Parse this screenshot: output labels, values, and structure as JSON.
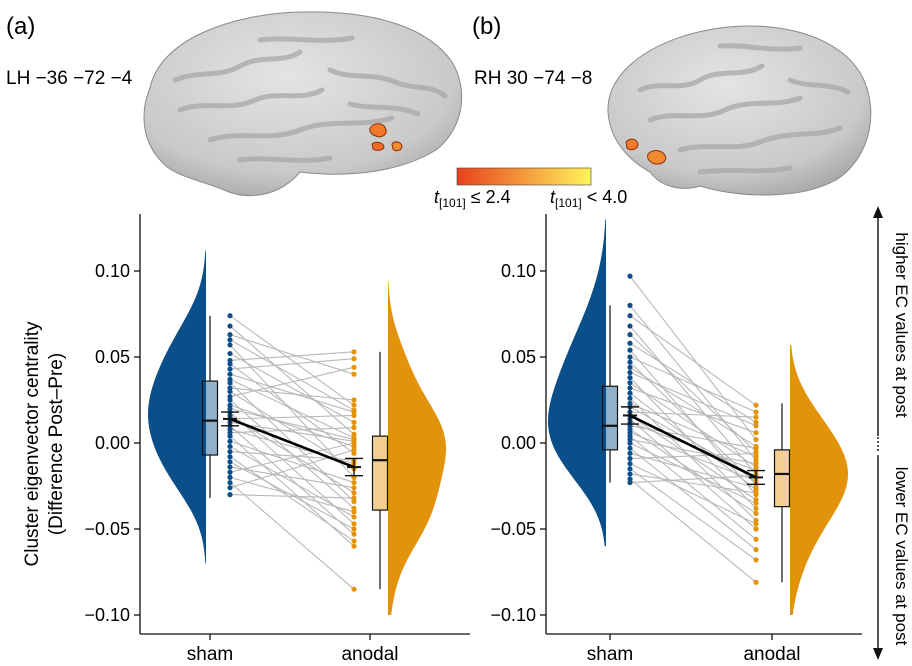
{
  "panels": [
    {
      "label": "(a)",
      "brain_label": "LH −36 −72 −4",
      "hemisphere": "left",
      "chart_data": {
        "type": "raincloud-paired",
        "categories": [
          "sham",
          "anodal"
        ],
        "ylim": [
          -0.11,
          0.13
        ],
        "yticks": [
          0.1,
          0.05,
          0.0,
          -0.05,
          -0.1
        ],
        "ytick_labels": [
          "0.10",
          "0.05",
          "0.00",
          "−0.05",
          "−0.10"
        ],
        "ylabel_line1": "Cluster eigenvector centrality",
        "ylabel_line2": "(Difference Post–Pre)",
        "boxes": [
          {
            "name": "sham",
            "q1": -0.007,
            "median": 0.013,
            "q3": 0.036,
            "whisker_low": -0.032,
            "whisker_high": 0.074,
            "mean": 0.014,
            "se": 0.004,
            "color": "#0b4f8a"
          },
          {
            "name": "anodal",
            "q1": -0.039,
            "median": -0.01,
            "q3": 0.004,
            "whisker_low": -0.085,
            "whisker_high": 0.053,
            "mean": -0.014,
            "se": 0.005,
            "color": "#e3930a"
          }
        ],
        "density_range": {
          "sham": [
            -0.07,
            0.112
          ],
          "anodal": [
            -0.1,
            0.094
          ]
        },
        "sham_points": [
          0.074,
          0.068,
          0.063,
          0.06,
          0.057,
          0.052,
          0.048,
          0.046,
          0.043,
          0.04,
          0.037,
          0.035,
          0.032,
          0.03,
          0.027,
          0.025,
          0.022,
          0.02,
          0.018,
          0.016,
          0.014,
          0.012,
          0.01,
          0.008,
          0.006,
          0.004,
          0.001,
          -0.002,
          -0.005,
          -0.008,
          -0.011,
          -0.014,
          -0.017,
          -0.02,
          -0.023,
          -0.026,
          -0.03
        ],
        "anodal_points": [
          0.022,
          0.005,
          0.04,
          0.019,
          -0.02,
          0.012,
          0.053,
          -0.006,
          0.049,
          0.018,
          0.003,
          -0.034,
          0.025,
          -0.015,
          0.044,
          -0.038,
          -0.002,
          0.002,
          -0.047,
          -0.029,
          0.016,
          0.001,
          -0.053,
          -0.012,
          0.009,
          -0.06,
          -0.023,
          -0.043,
          -0.01,
          -0.057,
          -0.05,
          -0.026,
          0.0,
          -0.04,
          -0.085,
          -0.004,
          -0.032
        ]
      }
    },
    {
      "label": "(b)",
      "brain_label": "RH 30 −74 −8",
      "hemisphere": "right",
      "chart_data": {
        "type": "raincloud-paired",
        "categories": [
          "sham",
          "anodal"
        ],
        "ylim": [
          -0.11,
          0.13
        ],
        "yticks": [
          0.1,
          0.05,
          0.0,
          -0.05,
          -0.1
        ],
        "ytick_labels": [
          "0.10",
          "0.05",
          "0.00",
          "−0.05",
          "−0.10"
        ],
        "boxes": [
          {
            "name": "sham",
            "q1": -0.004,
            "median": 0.01,
            "q3": 0.033,
            "whisker_low": -0.023,
            "whisker_high": 0.08,
            "mean": 0.016,
            "se": 0.005,
            "color": "#0b4f8a"
          },
          {
            "name": "anodal",
            "q1": -0.037,
            "median": -0.018,
            "q3": -0.004,
            "whisker_low": -0.081,
            "whisker_high": 0.023,
            "mean": -0.02,
            "se": 0.004,
            "color": "#e3930a"
          }
        ],
        "density_range": {
          "sham": [
            -0.06,
            0.13
          ],
          "anodal": [
            -0.1,
            0.057
          ]
        },
        "sham_points": [
          0.097,
          0.08,
          0.074,
          0.068,
          0.063,
          0.058,
          0.054,
          0.05,
          0.047,
          0.044,
          0.041,
          0.038,
          0.035,
          0.032,
          0.029,
          0.026,
          0.023,
          0.021,
          0.018,
          0.016,
          0.014,
          0.012,
          0.01,
          0.008,
          0.006,
          0.004,
          0.002,
          0.0,
          -0.003,
          -0.006,
          -0.009,
          -0.012,
          -0.015,
          -0.018,
          -0.021,
          -0.023
        ],
        "anodal_points": [
          0.002,
          -0.01,
          0.022,
          -0.018,
          -0.005,
          0.012,
          -0.03,
          0.018,
          -0.024,
          -0.002,
          0.01,
          -0.038,
          -0.014,
          0.006,
          -0.027,
          -0.045,
          -0.008,
          -0.02,
          0.015,
          -0.033,
          -0.05,
          -0.016,
          -0.003,
          -0.041,
          -0.022,
          -0.056,
          -0.012,
          -0.035,
          -0.062,
          -0.026,
          -0.006,
          -0.047,
          -0.068,
          -0.029,
          -0.081,
          -0.019
        ]
      }
    }
  ],
  "colorbar": {
    "min_label": "t[101] ≤ 2.4",
    "max_label": "t[101] < 4.0",
    "min_base": "t",
    "min_sub": "[101]",
    "min_rest": " ≤ 2.4",
    "max_base": "t",
    "max_sub": "[101]",
    "max_rest": " < 4.0",
    "color_low": "#e8401c",
    "color_high": "#fff45c"
  },
  "side_annotations": {
    "upper": "higher EC values at post",
    "lower": "lower EC values at post"
  },
  "colors": {
    "sham": "#0b4f8a",
    "anodal": "#e3930a",
    "pair_line": "#b8b8b8",
    "mean_line": "#000000"
  }
}
